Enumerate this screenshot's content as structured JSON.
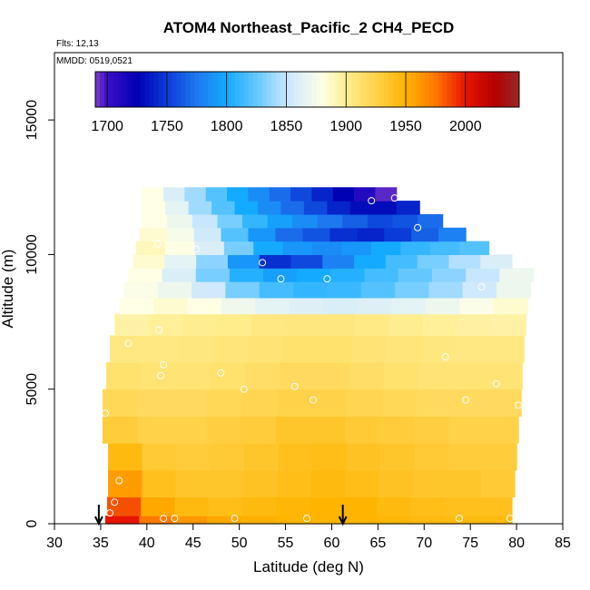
{
  "header": {
    "title": "ATOM4 Northeast_Pacific_2 CH4_PECD",
    "flights": "Flts: 12,13",
    "mmdd": "MMDD: 0519,0521"
  },
  "chart_data": {
    "type": "heatmap",
    "title": "ATOM4 Northeast_Pacific_2 CH4_PECD",
    "xlabel": "Latitude (deg N)",
    "ylabel": "Altitude (m)",
    "xlim": [
      30,
      85
    ],
    "ylim": [
      0,
      17500
    ],
    "x_ticks": [
      30,
      35,
      40,
      45,
      50,
      55,
      60,
      65,
      70,
      75,
      80,
      85
    ],
    "y_ticks": [
      0,
      5000,
      10000,
      15000
    ],
    "colorbar": {
      "range": [
        1690,
        2045
      ],
      "ticks": [
        1700,
        1750,
        1800,
        1850,
        1900,
        1950,
        2000
      ],
      "stops": [
        {
          "v": 1690,
          "c": "#7b3fc8"
        },
        {
          "v": 1700,
          "c": "#3b10c8"
        },
        {
          "v": 1725,
          "c": "#0000b4"
        },
        {
          "v": 1750,
          "c": "#0a3cd8"
        },
        {
          "v": 1775,
          "c": "#1e78f0"
        },
        {
          "v": 1800,
          "c": "#14aaff"
        },
        {
          "v": 1825,
          "c": "#64c8ff"
        },
        {
          "v": 1850,
          "c": "#c8e6ff"
        },
        {
          "v": 1880,
          "c": "#ffffe6"
        },
        {
          "v": 1900,
          "c": "#ffee90"
        },
        {
          "v": 1925,
          "c": "#ffd24a"
        },
        {
          "v": 1950,
          "c": "#ffb400"
        },
        {
          "v": 1975,
          "c": "#ff7800"
        },
        {
          "v": 2000,
          "c": "#e61400"
        },
        {
          "v": 2025,
          "c": "#b40000"
        },
        {
          "v": 2045,
          "c": "#962828"
        }
      ]
    },
    "field": [
      {
        "alt": [
          0,
          300
        ],
        "lat": [
          35.5,
          79.5
        ],
        "values": [
          2000,
          1975,
          1962,
          1955,
          1952,
          1950,
          1950,
          1950,
          1948,
          1945,
          1945,
          1945
        ]
      },
      {
        "alt": [
          300,
          1000
        ],
        "lat": [
          35.7,
          79.5
        ],
        "values": [
          1985,
          1955,
          1945,
          1942,
          1945,
          1948,
          1950,
          1950,
          1945,
          1942,
          1940,
          1940
        ]
      },
      {
        "alt": [
          1000,
          2000
        ],
        "lat": [
          35.8,
          79.8
        ],
        "values": [
          1960,
          1940,
          1935,
          1935,
          1938,
          1942,
          1945,
          1942,
          1938,
          1935,
          1935,
          1932
        ]
      },
      {
        "alt": [
          2000,
          3000
        ],
        "lat": [
          35.8,
          80.0
        ],
        "values": [
          1945,
          1932,
          1930,
          1932,
          1935,
          1940,
          1942,
          1938,
          1935,
          1932,
          1930,
          1930
        ]
      },
      {
        "alt": [
          3000,
          4000
        ],
        "lat": [
          35.2,
          80.2
        ],
        "values": [
          1930,
          1925,
          1925,
          1928,
          1930,
          1935,
          1935,
          1932,
          1930,
          1928,
          1925,
          1925
        ]
      },
      {
        "alt": [
          4000,
          5000
        ],
        "lat": [
          35.2,
          80.5
        ],
        "values": [
          1920,
          1918,
          1918,
          1920,
          1922,
          1925,
          1925,
          1922,
          1920,
          1918,
          1918,
          1918
        ]
      },
      {
        "alt": [
          5000,
          6000
        ],
        "lat": [
          35.6,
          80.6
        ],
        "values": [
          1912,
          1910,
          1910,
          1912,
          1915,
          1918,
          1918,
          1915,
          1912,
          1910,
          1910,
          1910
        ]
      },
      {
        "alt": [
          6000,
          7000
        ],
        "lat": [
          36.0,
          80.8
        ],
        "values": [
          1905,
          1905,
          1906,
          1908,
          1910,
          1912,
          1912,
          1910,
          1908,
          1906,
          1905,
          1905
        ]
      },
      {
        "alt": [
          7000,
          7800
        ],
        "lat": [
          36.5,
          81.0
        ],
        "values": [
          1895,
          1898,
          1900,
          1902,
          1905,
          1906,
          1906,
          1904,
          1900,
          1898,
          1896,
          1895
        ]
      },
      {
        "alt": [
          7800,
          8400
        ],
        "lat": [
          37.0,
          81.2
        ],
        "values": [
          1880,
          1885,
          1880,
          1872,
          1865,
          1862,
          1860,
          1862,
          1865,
          1870,
          1878,
          1885
        ]
      },
      {
        "alt": [
          8400,
          9000
        ],
        "lat": [
          37.5,
          81.5
        ],
        "values": [
          1878,
          1870,
          1855,
          1830,
          1815,
          1810,
          1812,
          1820,
          1830,
          1840,
          1855,
          1870
        ]
      },
      {
        "alt": [
          9000,
          9500
        ],
        "lat": [
          38.0,
          81.8
        ],
        "values": [
          1880,
          1860,
          1830,
          1805,
          1795,
          1800,
          1805,
          1815,
          1825,
          1835,
          1850,
          1870
        ]
      },
      {
        "alt": [
          9500,
          10000
        ],
        "lat": [
          38.5,
          79.5
        ],
        "values": [
          1885,
          1865,
          1835,
          1790,
          1745,
          1755,
          1780,
          1800,
          1815,
          1830,
          1845,
          1860
        ]
      },
      {
        "alt": [
          10000,
          10500
        ],
        "lat": [
          38.8,
          77.0
        ],
        "values": [
          1890,
          1880,
          1860,
          1830,
          1800,
          1790,
          1785,
          1790,
          1800,
          1810,
          1815,
          1820
        ]
      },
      {
        "alt": [
          10500,
          11000
        ],
        "lat": [
          39.2,
          74.5
        ],
        "values": [
          1885,
          1875,
          1855,
          1820,
          1790,
          1770,
          1760,
          1745,
          1740,
          1750,
          1765,
          1780
        ]
      },
      {
        "alt": [
          11000,
          11500
        ],
        "lat": [
          39.5,
          72.0
        ],
        "values": [
          1880,
          1870,
          1850,
          1830,
          1810,
          1795,
          1785,
          1775,
          1765,
          1755,
          1760,
          1770
        ]
      },
      {
        "alt": [
          11500,
          12000
        ],
        "lat": [
          39.5,
          69.5
        ],
        "values": [
          1880,
          1865,
          1840,
          1820,
          1800,
          1785,
          1770,
          1755,
          1740,
          1730,
          1730,
          1740
        ]
      },
      {
        "alt": [
          12000,
          12500
        ],
        "lat": [
          39.5,
          67.0
        ],
        "values": [
          1880,
          1860,
          1840,
          1820,
          1800,
          1785,
          1770,
          1755,
          1740,
          1725,
          1710,
          1695
        ]
      }
    ],
    "sample_points": [
      {
        "lat": 36.0,
        "alt": 400
      },
      {
        "lat": 36.5,
        "alt": 800
      },
      {
        "lat": 37.0,
        "alt": 1600
      },
      {
        "lat": 35.5,
        "alt": 4100
      },
      {
        "lat": 38.0,
        "alt": 6700
      },
      {
        "lat": 41.3,
        "alt": 7200
      },
      {
        "lat": 41.8,
        "alt": 5900
      },
      {
        "lat": 41.5,
        "alt": 5500
      },
      {
        "lat": 43.0,
        "alt": 200
      },
      {
        "lat": 41.8,
        "alt": 200
      },
      {
        "lat": 48.0,
        "alt": 5600
      },
      {
        "lat": 50.5,
        "alt": 5000
      },
      {
        "lat": 49.5,
        "alt": 200
      },
      {
        "lat": 52.5,
        "alt": 9700
      },
      {
        "lat": 54.5,
        "alt": 9100
      },
      {
        "lat": 56.0,
        "alt": 5100
      },
      {
        "lat": 58.0,
        "alt": 4600
      },
      {
        "lat": 57.3,
        "alt": 200
      },
      {
        "lat": 59.5,
        "alt": 9100
      },
      {
        "lat": 64.3,
        "alt": 12000
      },
      {
        "lat": 66.8,
        "alt": 12100
      },
      {
        "lat": 69.3,
        "alt": 11000
      },
      {
        "lat": 72.3,
        "alt": 6200
      },
      {
        "lat": 73.8,
        "alt": 200
      },
      {
        "lat": 74.5,
        "alt": 4600
      },
      {
        "lat": 76.2,
        "alt": 8800
      },
      {
        "lat": 77.8,
        "alt": 5200
      },
      {
        "lat": 79.3,
        "alt": 200
      },
      {
        "lat": 80.2,
        "alt": 4400
      },
      {
        "lat": 39.0,
        "alt": 12300
      },
      {
        "lat": 41.2,
        "alt": 10400
      },
      {
        "lat": 45.3,
        "alt": 10200
      }
    ],
    "markers": [
      34.8,
      61.2
    ]
  }
}
